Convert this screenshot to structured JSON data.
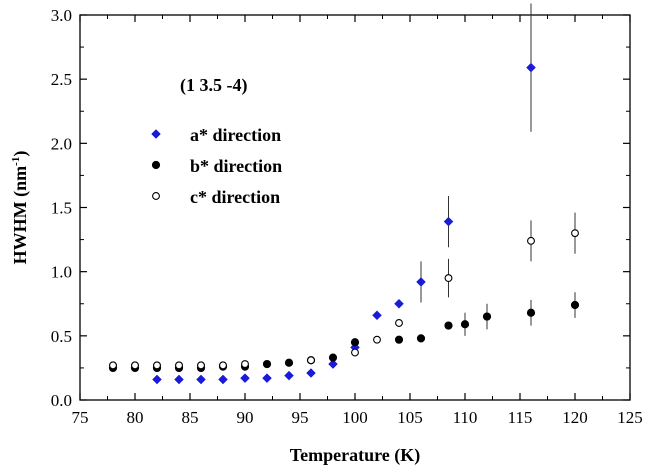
{
  "chart_data": {
    "type": "scatter",
    "title": "",
    "xlabel": "Temperature (K)",
    "ylabel_main": "HWHM (nm",
    "ylabel_sup": "-1",
    "ylabel_end": ")",
    "xlim": [
      75,
      125
    ],
    "ylim": [
      0.0,
      3.0
    ],
    "xticks": [
      75,
      80,
      85,
      90,
      95,
      100,
      105,
      110,
      115,
      120,
      125
    ],
    "xtick_labels": [
      "75",
      "80",
      "85",
      "90",
      "95",
      "100",
      "105",
      "110",
      "115",
      "120",
      "125"
    ],
    "yticks": [
      0.0,
      0.5,
      1.0,
      1.5,
      2.0,
      2.5,
      3.0
    ],
    "ytick_labels": [
      "0.0",
      "0.5",
      "1.0",
      "1.5",
      "2.0",
      "2.5",
      "3.0"
    ],
    "grid": false,
    "legend_position": "upper-left",
    "annotation": "(1 3.5 -4)",
    "series": [
      {
        "name": "a* direction",
        "marker": "diamond",
        "color": "#1a1adb",
        "points": [
          {
            "x": 82,
            "y": 0.16
          },
          {
            "x": 84,
            "y": 0.16
          },
          {
            "x": 86,
            "y": 0.16
          },
          {
            "x": 88,
            "y": 0.16
          },
          {
            "x": 90,
            "y": 0.17
          },
          {
            "x": 92,
            "y": 0.17
          },
          {
            "x": 94,
            "y": 0.19
          },
          {
            "x": 96,
            "y": 0.21
          },
          {
            "x": 98,
            "y": 0.28
          },
          {
            "x": 100,
            "y": 0.41
          },
          {
            "x": 102,
            "y": 0.66
          },
          {
            "x": 104,
            "y": 0.75
          },
          {
            "x": 106,
            "y": 0.92,
            "err": 0.16
          },
          {
            "x": 108.5,
            "y": 1.39,
            "err": 0.2
          },
          {
            "x": 116,
            "y": 2.59,
            "err": 0.5
          }
        ]
      },
      {
        "name": "b* direction",
        "marker": "filled-circle",
        "color": "#000000",
        "points": [
          {
            "x": 78,
            "y": 0.25
          },
          {
            "x": 80,
            "y": 0.25
          },
          {
            "x": 82,
            "y": 0.25
          },
          {
            "x": 84,
            "y": 0.25
          },
          {
            "x": 86,
            "y": 0.25
          },
          {
            "x": 88,
            "y": 0.26
          },
          {
            "x": 90,
            "y": 0.26
          },
          {
            "x": 92,
            "y": 0.28
          },
          {
            "x": 94,
            "y": 0.29
          },
          {
            "x": 96,
            "y": 0.31
          },
          {
            "x": 98,
            "y": 0.33
          },
          {
            "x": 100,
            "y": 0.45
          },
          {
            "x": 104,
            "y": 0.47
          },
          {
            "x": 106,
            "y": 0.48
          },
          {
            "x": 108.5,
            "y": 0.58
          },
          {
            "x": 110,
            "y": 0.59,
            "err": 0.09
          },
          {
            "x": 112,
            "y": 0.65,
            "err": 0.1
          },
          {
            "x": 116,
            "y": 0.68,
            "err": 0.1
          },
          {
            "x": 120,
            "y": 0.74,
            "err": 0.1
          }
        ]
      },
      {
        "name": "c* direction",
        "marker": "open-circle",
        "color": "#000000",
        "points": [
          {
            "x": 78,
            "y": 0.27
          },
          {
            "x": 80,
            "y": 0.27
          },
          {
            "x": 82,
            "y": 0.27
          },
          {
            "x": 84,
            "y": 0.27
          },
          {
            "x": 86,
            "y": 0.27
          },
          {
            "x": 88,
            "y": 0.27
          },
          {
            "x": 90,
            "y": 0.28
          },
          {
            "x": 96,
            "y": 0.31
          },
          {
            "x": 100,
            "y": 0.37
          },
          {
            "x": 102,
            "y": 0.47
          },
          {
            "x": 104,
            "y": 0.6
          },
          {
            "x": 108.5,
            "y": 0.95,
            "err": 0.15
          },
          {
            "x": 116,
            "y": 1.24,
            "err": 0.16
          },
          {
            "x": 120,
            "y": 1.3,
            "err": 0.16
          }
        ]
      }
    ]
  }
}
